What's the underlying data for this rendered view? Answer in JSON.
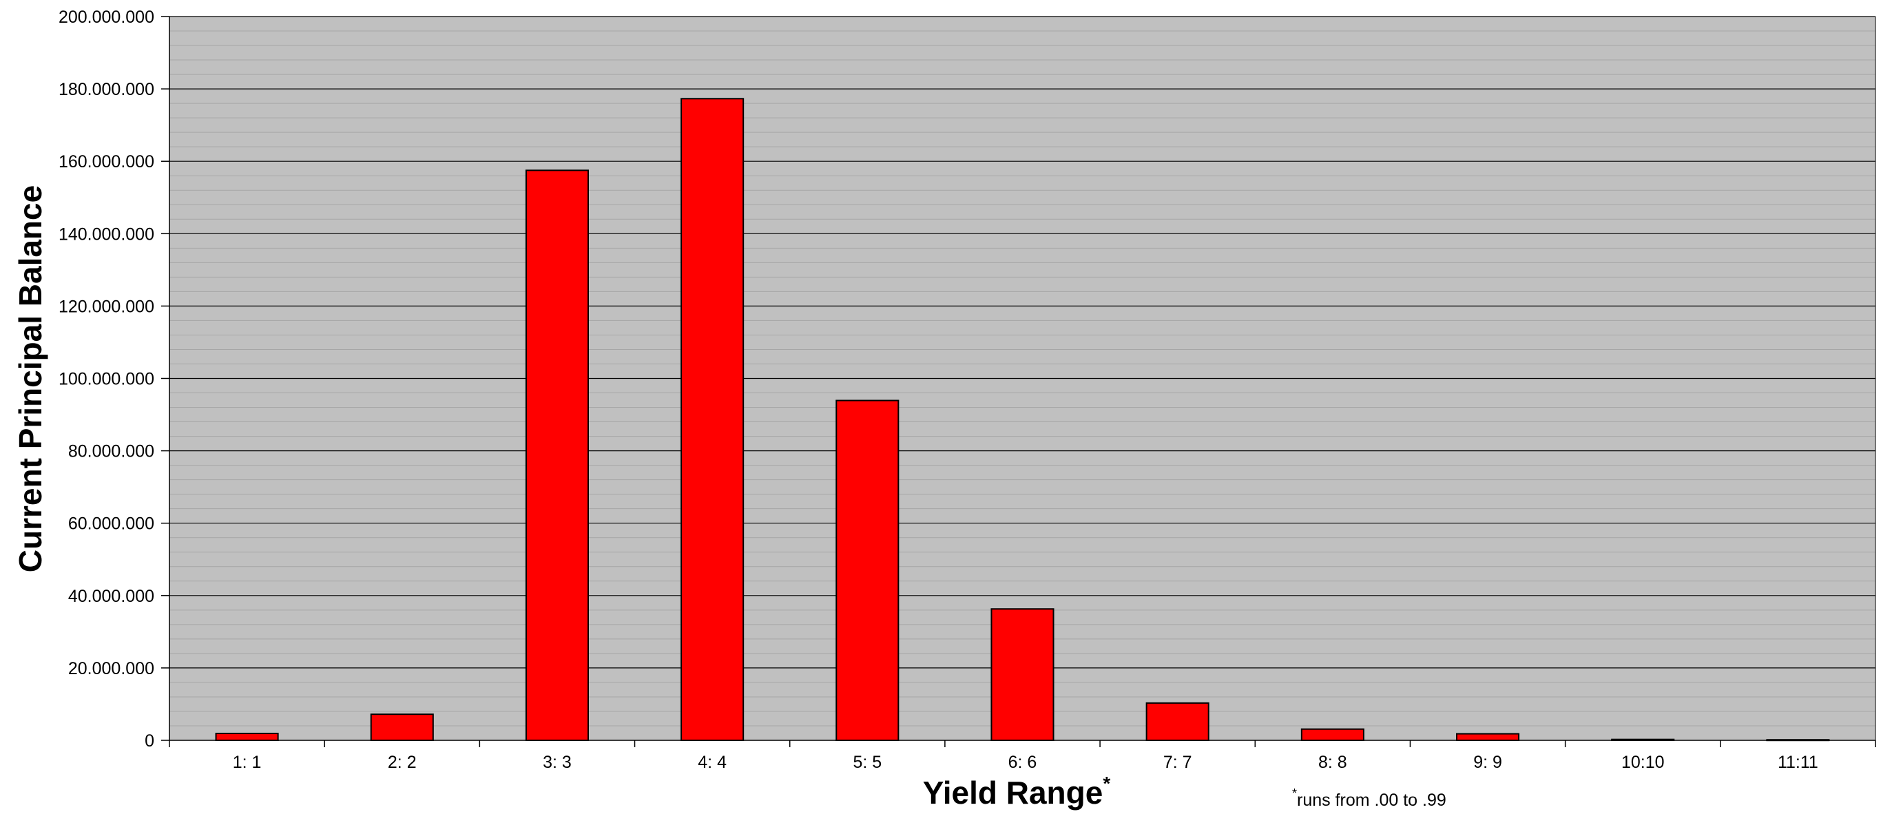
{
  "chart_data": {
    "type": "bar",
    "title": "",
    "xlabel": "Yield Range",
    "xlabel_marker": "*",
    "ylabel": "Current Principal Balance",
    "footnote_marker": "*",
    "footnote": "runs from .00 to .99",
    "categories": [
      "1: 1",
      "2: 2",
      "3: 3",
      "4: 4",
      "5: 5",
      "6: 6",
      "7: 7",
      "8: 8",
      "9: 9",
      "10:10",
      "11:11"
    ],
    "values": [
      1900000,
      7200000,
      157500000,
      177300000,
      93900000,
      36300000,
      10300000,
      3100000,
      1800000,
      250000,
      150000
    ],
    "ylim": [
      0,
      200000000
    ],
    "y_ticks": [
      "0",
      "20.000.000",
      "40.000.000",
      "60.000.000",
      "80.000.000",
      "100.000.000",
      "120.000.000",
      "140.000.000",
      "160.000.000",
      "180.000.000",
      "200.000.000"
    ],
    "grid": true,
    "legend": "none",
    "colors": {
      "bar_fill": "#ff0000",
      "bar_stroke": "#000000",
      "plot_background": "#c0c0c0",
      "major_grid": "#000000",
      "minor_grid": "#a6a6a6"
    }
  }
}
